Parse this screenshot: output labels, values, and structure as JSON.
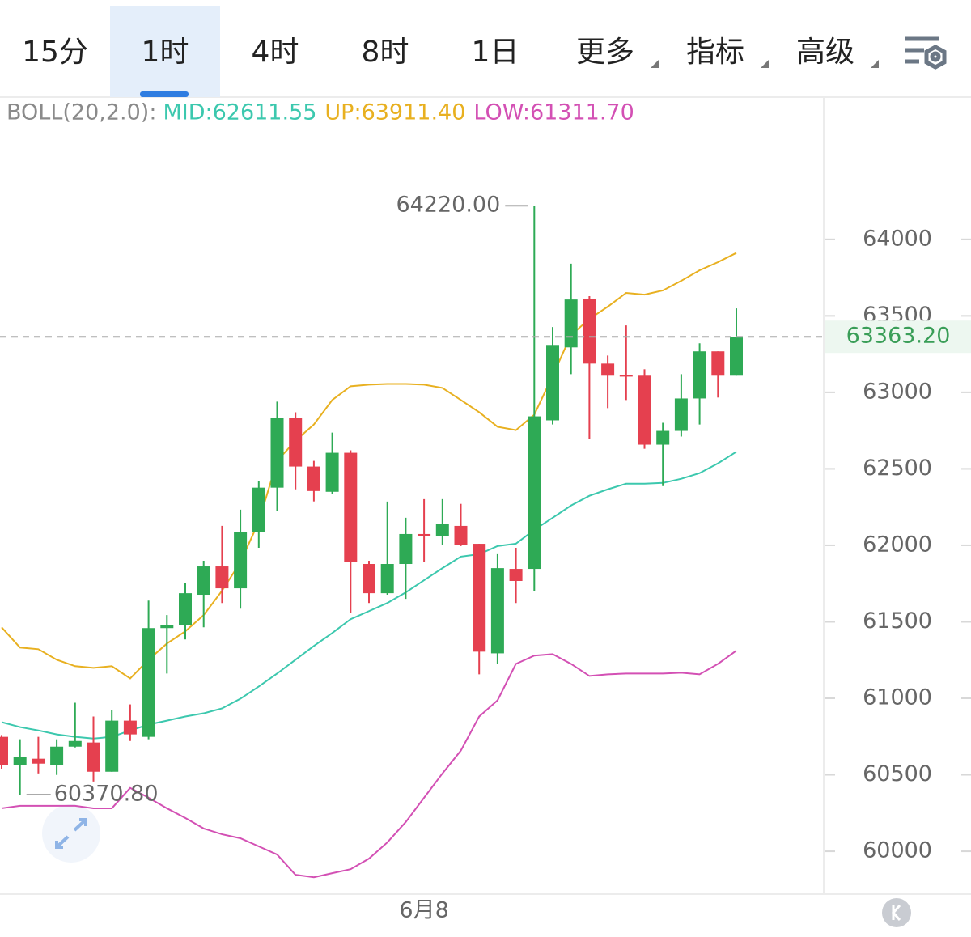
{
  "tabs": [
    {
      "label": "15分",
      "dropdown": false
    },
    {
      "label": "1时",
      "dropdown": false
    },
    {
      "label": "4时",
      "dropdown": false
    },
    {
      "label": "8时",
      "dropdown": false
    },
    {
      "label": "1日",
      "dropdown": false
    },
    {
      "label": "更多",
      "dropdown": true
    },
    {
      "label": "指标",
      "dropdown": true
    },
    {
      "label": "高级",
      "dropdown": true
    }
  ],
  "active_tab": 1,
  "chart_data": {
    "type": "candlestick",
    "indicator": "BOLL(20,2.0):",
    "categories": [
      null,
      null,
      null,
      null,
      null,
      null,
      null,
      null,
      null,
      null,
      null,
      null,
      null,
      null,
      null,
      null,
      null,
      null,
      null,
      null,
      null,
      null,
      null,
      "6月8",
      null,
      null,
      null,
      null,
      null,
      null,
      null,
      null,
      null,
      null,
      null,
      null,
      null,
      null,
      null,
      null,
      null
    ],
    "up_color": "#2eaa55",
    "down_color": "#e5404f",
    "open": [
      60748,
      60562,
      60605,
      60562,
      60684,
      60711,
      60520,
      60854,
      60748,
      61459,
      61480,
      61677,
      61862,
      61719,
      62085,
      62377,
      62833,
      62515,
      62350,
      62605,
      61878,
      61687,
      61878,
      62074,
      62058,
      62127,
      62010,
      61294,
      61846,
      61846,
      62817,
      63294,
      63613,
      63188,
      63114,
      63109,
      62658,
      62748,
      62960,
      63268,
      63109
    ],
    "high": [
      60760,
      60732,
      60748,
      60732,
      60971,
      60881,
      60923,
      60960,
      61639,
      61544,
      61756,
      61899,
      62127,
      62233,
      62419,
      62939,
      62870,
      62552,
      62737,
      62621,
      61899,
      62286,
      62180,
      62302,
      62302,
      62271,
      62010,
      61942,
      61984,
      64220,
      63427,
      63841,
      63629,
      63241,
      63438,
      63151,
      62801,
      63119,
      63321,
      63268,
      63549
    ],
    "low": [
      60540,
      60370.8,
      60509,
      60499,
      60679,
      60456,
      60520,
      60721,
      60732,
      61162,
      61385,
      61464,
      61623,
      61586,
      61984,
      62223,
      62366,
      62287,
      62334,
      61560,
      61623,
      61677,
      61650,
      61889,
      62005,
      61995,
      61157,
      61226,
      61623,
      61703,
      62790,
      63119,
      62695,
      62897,
      62950,
      62631,
      62387,
      62711,
      62790,
      62966,
      63109
    ],
    "close": [
      60562,
      60615,
      60573,
      60684,
      60721,
      60520,
      60854,
      60764,
      61459,
      61480,
      61687,
      61862,
      61719,
      62085,
      62377,
      62833,
      62515,
      62355,
      62605,
      61889,
      61687,
      61878,
      62074,
      62058,
      62138,
      62005,
      61305,
      61851,
      61767,
      62843,
      63310,
      63607,
      63188,
      63109,
      63103,
      62658,
      62748,
      62960,
      63268,
      63109,
      63363.2
    ],
    "series": [
      {
        "name": "MID",
        "legend": "MID:62611.55",
        "color": "#3cc8ae",
        "values": [
          60844,
          60812,
          60790,
          60764,
          60748,
          60737,
          60748,
          60790,
          60828,
          60854,
          60881,
          60902,
          60934,
          60997,
          61077,
          61162,
          61252,
          61342,
          61427,
          61517,
          61570,
          61623,
          61692,
          61772,
          61851,
          61926,
          61942,
          61995,
          62011,
          62101,
          62180,
          62260,
          62324,
          62366,
          62403,
          62403,
          62408,
          62435,
          62472,
          62536,
          62611.55
        ]
      },
      {
        "name": "UP",
        "legend": "UP:63911.40",
        "color": "#e8b020",
        "values": [
          61464,
          61332,
          61321,
          61252,
          61210,
          61199,
          61210,
          61130,
          61252,
          61358,
          61438,
          61544,
          61703,
          61889,
          62154,
          62552,
          62684,
          62790,
          62950,
          63040,
          63050,
          63055,
          63055,
          63050,
          63029,
          62950,
          62870,
          62775,
          62753,
          62854,
          63109,
          63374,
          63480,
          63560,
          63650,
          63639,
          63666,
          63729,
          63798,
          63851,
          63911.4
        ]
      },
      {
        "name": "LOW",
        "legend": "LOW:61311.70",
        "color": "#d350b4",
        "values": [
          60281,
          60297,
          60297,
          60297,
          60297,
          60281,
          60281,
          60414,
          60350,
          60281,
          60218,
          60149,
          60111,
          60085,
          60032,
          59979,
          59846,
          59830,
          59857,
          59883,
          59952,
          60058,
          60191,
          60350,
          60509,
          60658,
          60881,
          60987,
          61225,
          61279,
          61289,
          61225,
          61146,
          61157,
          61162,
          61162,
          61162,
          61167,
          61157,
          61225,
          61311.7
        ]
      }
    ],
    "ylim": [
      59720,
      64930
    ],
    "yticks": [
      60000,
      60500,
      61000,
      61500,
      62000,
      62500,
      63000,
      63500,
      64000
    ],
    "high_marker": {
      "value": 64220,
      "label": "64220.00"
    },
    "low_marker": {
      "value": 60370.8,
      "label": "60370.80"
    },
    "last_price": {
      "value": 63363.2,
      "label": "63363.20",
      "color": "#3a9e58"
    }
  }
}
